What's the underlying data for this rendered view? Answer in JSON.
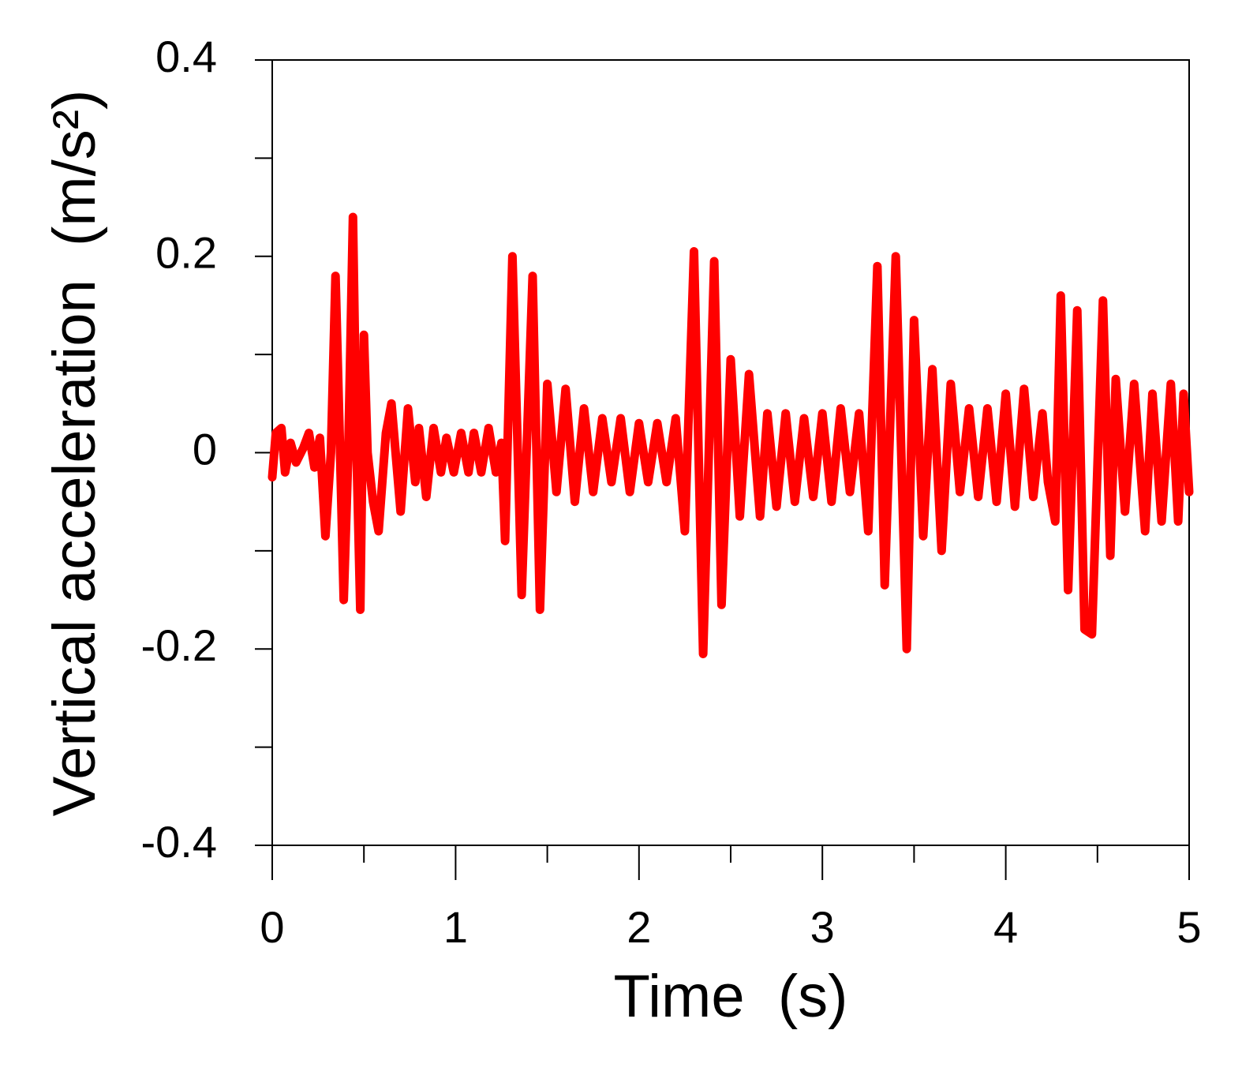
{
  "chart_data": {
    "type": "line",
    "xlabel": "Time  (s)",
    "ylabel": "Vertical acceleration  (m/s²)",
    "x": [
      0,
      0.02,
      0.05,
      0.07,
      0.1,
      0.13,
      0.17,
      0.2,
      0.23,
      0.26,
      0.29,
      0.32,
      0.345,
      0.37,
      0.39,
      0.415,
      0.44,
      0.46,
      0.48,
      0.5,
      0.52,
      0.55,
      0.58,
      0.62,
      0.65,
      0.7,
      0.74,
      0.78,
      0.8,
      0.84,
      0.88,
      0.92,
      0.95,
      0.99,
      1.03,
      1.07,
      1.1,
      1.14,
      1.18,
      1.22,
      1.25,
      1.27,
      1.31,
      1.36,
      1.42,
      1.46,
      1.5,
      1.55,
      1.6,
      1.65,
      1.7,
      1.75,
      1.8,
      1.85,
      1.9,
      1.95,
      2.0,
      2.05,
      2.1,
      2.15,
      2.2,
      2.25,
      2.3,
      2.35,
      2.41,
      2.45,
      2.5,
      2.55,
      2.6,
      2.66,
      2.7,
      2.75,
      2.8,
      2.85,
      2.9,
      2.95,
      3.0,
      3.05,
      3.1,
      3.15,
      3.2,
      3.25,
      3.3,
      3.34,
      3.4,
      3.46,
      3.5,
      3.55,
      3.6,
      3.65,
      3.7,
      3.75,
      3.8,
      3.85,
      3.9,
      3.95,
      4.0,
      4.05,
      4.1,
      4.15,
      4.2,
      4.23,
      4.27,
      4.3,
      4.34,
      4.39,
      4.43,
      4.47,
      4.53,
      4.57,
      4.6,
      4.65,
      4.7,
      4.76,
      4.8,
      4.85,
      4.9,
      4.94,
      4.97,
      5.0
    ],
    "series": [
      {
        "color": "#ff0000",
        "values": [
          -0.025,
          0.02,
          0.025,
          -0.02,
          0.01,
          -0.01,
          0.005,
          0.02,
          -0.015,
          0.015,
          -0.085,
          0.0,
          0.18,
          0.0,
          -0.15,
          0.0,
          0.24,
          0.0,
          -0.16,
          0.12,
          0.0,
          -0.05,
          -0.08,
          0.02,
          0.05,
          -0.06,
          0.045,
          -0.03,
          0.025,
          -0.045,
          0.025,
          -0.02,
          0.015,
          -0.02,
          0.02,
          -0.02,
          0.02,
          -0.02,
          0.025,
          -0.02,
          0.01,
          -0.09,
          0.2,
          -0.145,
          0.18,
          -0.16,
          0.07,
          -0.04,
          0.065,
          -0.05,
          0.045,
          -0.04,
          0.035,
          -0.03,
          0.035,
          -0.04,
          0.03,
          -0.03,
          0.03,
          -0.03,
          0.035,
          -0.08,
          0.205,
          -0.205,
          0.195,
          -0.155,
          0.095,
          -0.065,
          0.08,
          -0.065,
          0.04,
          -0.055,
          0.04,
          -0.05,
          0.035,
          -0.045,
          0.04,
          -0.05,
          0.045,
          -0.04,
          0.04,
          -0.08,
          0.19,
          -0.135,
          0.2,
          -0.2,
          0.135,
          -0.085,
          0.085,
          -0.1,
          0.07,
          -0.04,
          0.045,
          -0.045,
          0.045,
          -0.05,
          0.06,
          -0.055,
          0.065,
          -0.045,
          0.04,
          -0.03,
          -0.07,
          0.16,
          -0.14,
          0.145,
          -0.18,
          -0.185,
          0.155,
          -0.105,
          0.075,
          -0.06,
          0.07,
          -0.08,
          0.06,
          -0.07,
          0.07,
          -0.07,
          0.06,
          -0.04
        ]
      }
    ],
    "xlim": [
      0,
      5
    ],
    "xticks": [
      0,
      1,
      2,
      3,
      4,
      5
    ],
    "xticks_minor": [
      0.5,
      1.5,
      2.5,
      3.5,
      4.5
    ],
    "ylim": [
      -0.4,
      0.4
    ],
    "yticks": [
      -0.4,
      -0.2,
      0,
      0.2,
      0.4
    ],
    "yticks_minor": [
      -0.3,
      -0.1,
      0.1,
      0.3
    ],
    "grid": false
  }
}
